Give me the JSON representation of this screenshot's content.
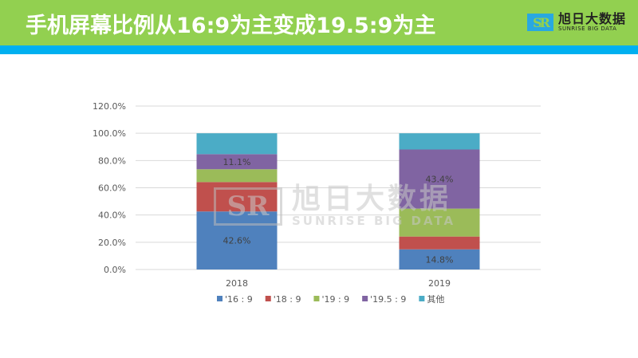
{
  "header": {
    "title": "手机屏幕比例从16:9为主变成19.5:9为主"
  },
  "logo": {
    "mark": "SR",
    "cn": "旭日大数据",
    "en": "SUNRISE BIG DATA"
  },
  "colors": {
    "header": "#92d050",
    "stripe": "#00b0f0"
  },
  "chart_data": {
    "type": "bar",
    "stacked": true,
    "categories": [
      "2018",
      "2019"
    ],
    "ylim": [
      0,
      120
    ],
    "yticks": [
      "0.0%",
      "20.0%",
      "40.0%",
      "60.0%",
      "80.0%",
      "100.0%",
      "120.0%"
    ],
    "grid": true,
    "legend_position": "bottom",
    "series": [
      {
        "name": "'16 : 9",
        "color": "#4f81bd",
        "values": [
          42.6,
          14.8
        ],
        "labels": [
          "42.6%",
          "14.8%"
        ]
      },
      {
        "name": "'18 : 9",
        "color": "#c0504d",
        "values": [
          21.6,
          9.4
        ],
        "labels": [
          "",
          ""
        ]
      },
      {
        "name": "'19 : 9",
        "color": "#9bbb59",
        "values": [
          9.4,
          20.5
        ],
        "labels": [
          "",
          ""
        ]
      },
      {
        "name": "'19.5 : 9",
        "color": "#8064a2",
        "values": [
          11.1,
          43.4
        ],
        "labels": [
          "11.1%",
          "43.4%"
        ]
      },
      {
        "name": "其他",
        "color": "#4bacc6",
        "values": [
          15.3,
          11.9
        ],
        "labels": [
          "",
          ""
        ]
      }
    ]
  }
}
